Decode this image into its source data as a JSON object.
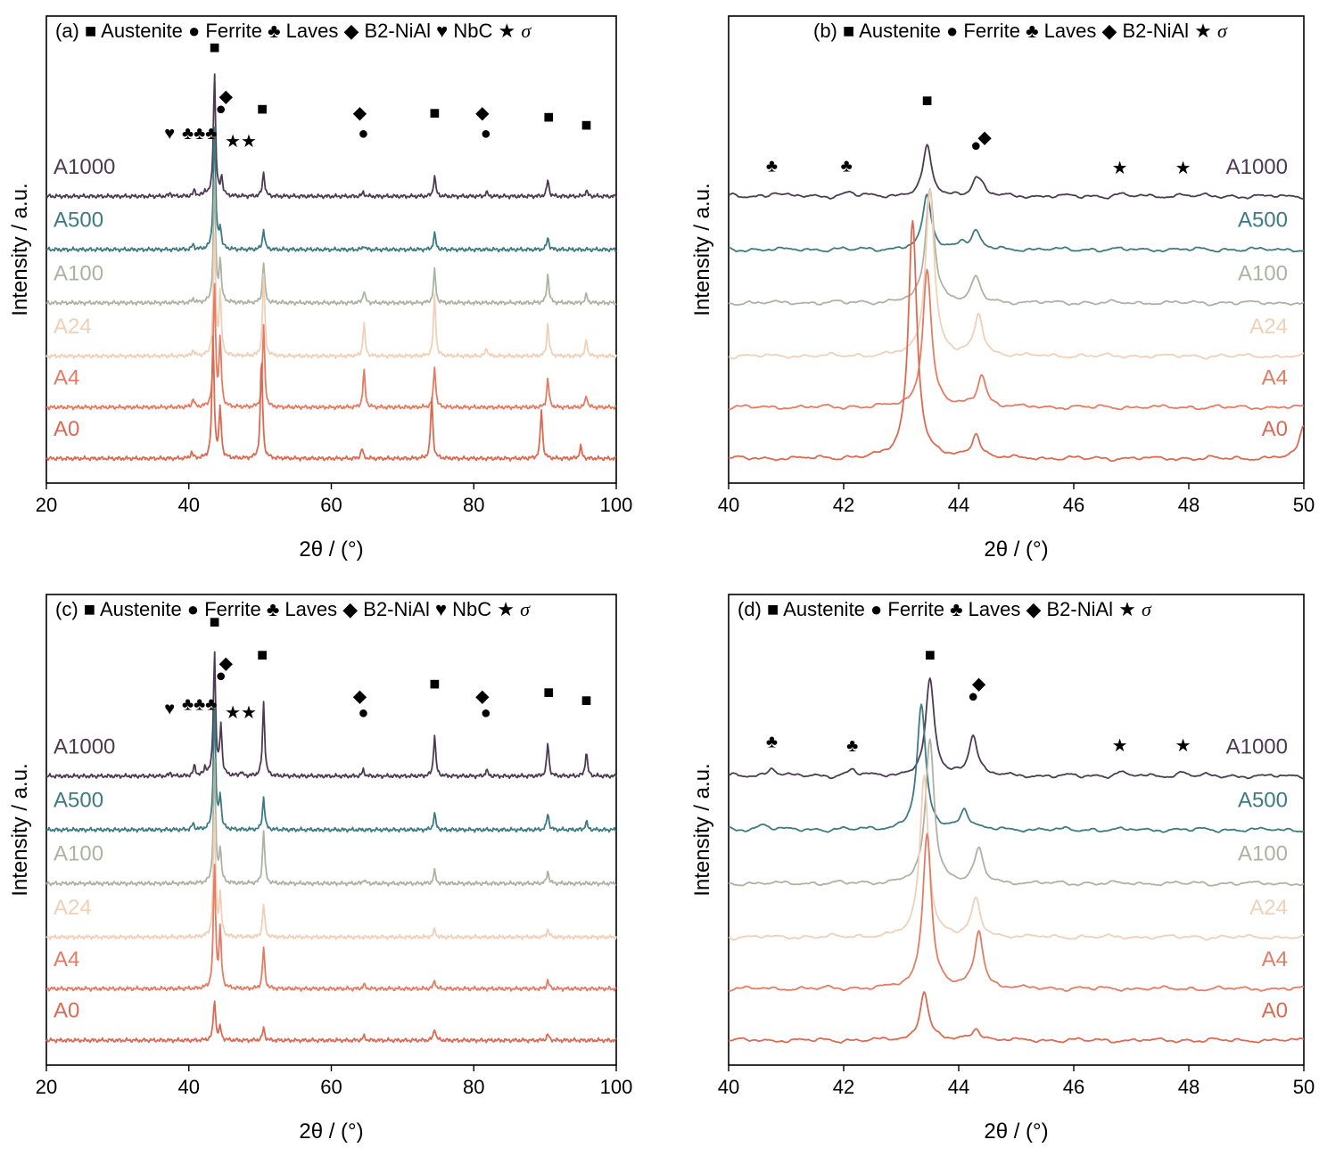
{
  "figure_title": "",
  "colors": {
    "A1000": "#4d3a52",
    "A500": "#3d7b80",
    "A100": "#adb3a2",
    "A24": "#f0d0b8",
    "A4": "#e57b63",
    "A0": "#dc6a52"
  },
  "chart_data": [
    {
      "panel": "(a)",
      "type": "line",
      "legend_text": "■ Austenite ● Ferrite ♣ Laves ◆ B2-NiAl ♥ NbC ★ σ",
      "xlabel": "2θ / (°)",
      "ylabel": "Intensity / a.u.",
      "xlim": [
        20,
        100
      ],
      "xticks": [
        "20",
        "40",
        "60",
        "80",
        "100"
      ],
      "yticks": "none",
      "series": [
        {
          "name": "A1000",
          "offset": 6.4,
          "peaks": [
            [
              43.6,
              3.0
            ],
            [
              44.6,
              0.45
            ],
            [
              40.8,
              0.15
            ],
            [
              42.3,
              0.12
            ],
            [
              50.5,
              0.6
            ],
            [
              74.5,
              0.5
            ],
            [
              90.4,
              0.4
            ],
            [
              95.8,
              0.15
            ],
            [
              64.5,
              0.1
            ],
            [
              81.8,
              0.1
            ],
            [
              37.4,
              0.08
            ]
          ]
        },
        {
          "name": "A500",
          "offset": 5.1,
          "peaks": [
            [
              43.6,
              3.0
            ],
            [
              44.4,
              0.5
            ],
            [
              50.5,
              0.5
            ],
            [
              74.5,
              0.4
            ],
            [
              90.4,
              0.3
            ],
            [
              64.6,
              0.1
            ],
            [
              40.6,
              0.12
            ]
          ]
        },
        {
          "name": "A100",
          "offset": 3.8,
          "peaks": [
            [
              43.6,
              3.0
            ],
            [
              44.4,
              1.0
            ],
            [
              50.5,
              1.0
            ],
            [
              74.5,
              0.8
            ],
            [
              90.4,
              0.7
            ],
            [
              64.6,
              0.3
            ],
            [
              95.8,
              0.2
            ],
            [
              40.6,
              0.1
            ]
          ]
        },
        {
          "name": "A24",
          "offset": 2.5,
          "peaks": [
            [
              43.6,
              3.0
            ],
            [
              44.4,
              1.5
            ],
            [
              50.5,
              2.0
            ],
            [
              74.5,
              1.5
            ],
            [
              90.4,
              0.8
            ],
            [
              64.6,
              0.8
            ],
            [
              95.8,
              0.4
            ],
            [
              40.6,
              0.15
            ],
            [
              81.8,
              0.2
            ]
          ]
        },
        {
          "name": "A4",
          "offset": 1.25,
          "peaks": [
            [
              43.6,
              3.0
            ],
            [
              44.4,
              1.6
            ],
            [
              50.5,
              2.0
            ],
            [
              74.5,
              1.0
            ],
            [
              90.4,
              0.7
            ],
            [
              64.6,
              0.9
            ],
            [
              95.8,
              0.3
            ],
            [
              40.6,
              0.2
            ]
          ]
        },
        {
          "name": "A0",
          "offset": 0.0,
          "peaks": [
            [
              43.4,
              3.0
            ],
            [
              44.4,
              1.2
            ],
            [
              50.2,
              2.5
            ],
            [
              74.1,
              1.5
            ],
            [
              89.5,
              1.2
            ],
            [
              64.3,
              0.25
            ],
            [
              95.0,
              0.3
            ],
            [
              40.4,
              0.15
            ]
          ]
        }
      ],
      "annotations": [
        {
          "symbol": "■",
          "x": 43.6,
          "y": 9.9
        },
        {
          "symbol": "◆",
          "x": 45.2,
          "y": 8.7
        },
        {
          "symbol": "●",
          "x": 44.5,
          "y": 8.4
        },
        {
          "symbol": "♥",
          "x": 37.3,
          "y": 7.8
        },
        {
          "symbol": "♣♣♣",
          "x": 41.5,
          "y": 7.8
        },
        {
          "symbol": "★★",
          "x": 47.3,
          "y": 7.6
        },
        {
          "symbol": "■",
          "x": 50.3,
          "y": 8.4
        },
        {
          "symbol": "◆",
          "x": 64.0,
          "y": 8.3
        },
        {
          "symbol": "●",
          "x": 64.5,
          "y": 7.8
        },
        {
          "symbol": "■",
          "x": 74.5,
          "y": 8.3
        },
        {
          "symbol": "◆",
          "x": 81.2,
          "y": 8.3
        },
        {
          "symbol": "●",
          "x": 81.7,
          "y": 7.8
        },
        {
          "symbol": "■",
          "x": 90.5,
          "y": 8.2
        },
        {
          "symbol": "■",
          "x": 95.8,
          "y": 8.0
        }
      ]
    },
    {
      "panel": "(b)",
      "type": "line",
      "legend_text": "■ Austenite ● Ferrite ♣ Laves ◆ B2-NiAl ★ σ",
      "xlabel": "2θ / (°)",
      "ylabel": "Intensity / a.u.",
      "xlim": [
        40,
        50
      ],
      "xticks": [
        "40",
        "42",
        "44",
        "46",
        "48",
        "50"
      ],
      "yticks": "none",
      "series": [
        {
          "name": "A1000",
          "offset": 6.4,
          "peaks": [
            [
              43.45,
              1.2
            ],
            [
              44.3,
              0.4
            ],
            [
              44.4,
              0.15
            ],
            [
              40.8,
              0.1
            ],
            [
              42.1,
              0.1
            ],
            [
              46.8,
              0.05
            ],
            [
              47.9,
              0.05
            ]
          ]
        },
        {
          "name": "A500",
          "offset": 5.1,
          "peaks": [
            [
              43.45,
              1.3
            ],
            [
              44.3,
              0.4
            ],
            [
              44.05,
              0.2
            ]
          ]
        },
        {
          "name": "A100",
          "offset": 3.8,
          "peaks": [
            [
              43.5,
              2.8
            ],
            [
              44.3,
              0.6
            ]
          ]
        },
        {
          "name": "A24",
          "offset": 2.5,
          "peaks": [
            [
              43.5,
              4.1
            ],
            [
              44.35,
              1.0
            ]
          ]
        },
        {
          "name": "A4",
          "offset": 1.25,
          "peaks": [
            [
              43.45,
              3.4
            ],
            [
              44.4,
              0.8
            ]
          ]
        },
        {
          "name": "A0",
          "offset": 0.0,
          "peaks": [
            [
              43.2,
              5.8
            ],
            [
              44.3,
              0.6
            ],
            [
              50.0,
              0.8
            ]
          ]
        }
      ],
      "annotations": [
        {
          "symbol": "■",
          "x": 43.45,
          "y": 8.6
        },
        {
          "symbol": "◆",
          "x": 44.45,
          "y": 7.7
        },
        {
          "symbol": "●",
          "x": 44.3,
          "y": 7.5
        },
        {
          "symbol": "♣",
          "x": 40.75,
          "y": 7.0
        },
        {
          "symbol": "♣",
          "x": 42.05,
          "y": 7.0
        },
        {
          "symbol": "★",
          "x": 46.8,
          "y": 6.95
        },
        {
          "symbol": "★",
          "x": 47.9,
          "y": 6.95
        }
      ]
    },
    {
      "panel": "(c)",
      "type": "line",
      "legend_text": "■ Austenite ● Ferrite ♣ Laves ◆ B2-NiAl ♥ NbC ★ σ",
      "xlabel": "2θ / (°)",
      "ylabel": "Intensity / a.u.",
      "xlim": [
        20,
        100
      ],
      "xticks": [
        "20",
        "40",
        "60",
        "80",
        "100"
      ],
      "yticks": "none",
      "series": [
        {
          "name": "A1000",
          "offset": 6.4,
          "peaks": [
            [
              43.6,
              3.0
            ],
            [
              44.5,
              1.2
            ],
            [
              50.5,
              1.8
            ],
            [
              74.5,
              1.0
            ],
            [
              90.4,
              0.8
            ],
            [
              95.8,
              0.6
            ],
            [
              40.8,
              0.25
            ],
            [
              42.3,
              0.2
            ],
            [
              64.5,
              0.15
            ],
            [
              81.8,
              0.15
            ],
            [
              37.4,
              0.08
            ],
            [
              47.3,
              0.1
            ]
          ]
        },
        {
          "name": "A500",
          "offset": 5.1,
          "peaks": [
            [
              43.6,
              3.0
            ],
            [
              44.4,
              0.8
            ],
            [
              50.5,
              0.8
            ],
            [
              74.5,
              0.4
            ],
            [
              90.4,
              0.4
            ],
            [
              95.8,
              0.2
            ],
            [
              40.6,
              0.15
            ]
          ]
        },
        {
          "name": "A100",
          "offset": 3.8,
          "peaks": [
            [
              43.6,
              3.0
            ],
            [
              44.4,
              0.8
            ],
            [
              50.5,
              1.3
            ],
            [
              74.5,
              0.3
            ],
            [
              90.4,
              0.3
            ],
            [
              64.6,
              0.1
            ]
          ]
        },
        {
          "name": "A24",
          "offset": 2.5,
          "peaks": [
            [
              43.6,
              3.0
            ],
            [
              44.4,
              1.0
            ],
            [
              50.5,
              0.8
            ],
            [
              74.5,
              0.2
            ],
            [
              90.4,
              0.2
            ]
          ]
        },
        {
          "name": "A4",
          "offset": 1.25,
          "peaks": [
            [
              43.6,
              3.0
            ],
            [
              44.4,
              1.4
            ],
            [
              50.5,
              1.0
            ],
            [
              74.5,
              0.2
            ],
            [
              90.4,
              0.2
            ],
            [
              64.6,
              0.1
            ]
          ]
        },
        {
          "name": "A0",
          "offset": 0.0,
          "peaks": [
            [
              43.6,
              1.0
            ],
            [
              44.4,
              0.3
            ],
            [
              50.5,
              0.3
            ],
            [
              74.5,
              0.3
            ],
            [
              90.4,
              0.15
            ],
            [
              64.6,
              0.1
            ]
          ]
        }
      ],
      "annotations": [
        {
          "symbol": "■",
          "x": 43.6,
          "y": 10.0
        },
        {
          "symbol": "◆",
          "x": 45.2,
          "y": 9.0
        },
        {
          "symbol": "●",
          "x": 44.5,
          "y": 8.7
        },
        {
          "symbol": "♥",
          "x": 37.3,
          "y": 7.9
        },
        {
          "symbol": "♣♣♣",
          "x": 41.5,
          "y": 8.0
        },
        {
          "symbol": "★★",
          "x": 47.3,
          "y": 7.8
        },
        {
          "symbol": "■",
          "x": 50.3,
          "y": 9.2
        },
        {
          "symbol": "◆",
          "x": 64.0,
          "y": 8.2
        },
        {
          "symbol": "●",
          "x": 64.5,
          "y": 7.8
        },
        {
          "symbol": "■",
          "x": 74.5,
          "y": 8.5
        },
        {
          "symbol": "◆",
          "x": 81.2,
          "y": 8.2
        },
        {
          "symbol": "●",
          "x": 81.7,
          "y": 7.8
        },
        {
          "symbol": "■",
          "x": 90.5,
          "y": 8.3
        },
        {
          "symbol": "■",
          "x": 95.8,
          "y": 8.1
        }
      ]
    },
    {
      "panel": "(d)",
      "type": "line",
      "legend_text": "■ Austenite ● Ferrite ♣ Laves ◆ B2-NiAl ★ σ",
      "xlabel": "2θ / (°)",
      "ylabel": "Intensity / a.u.",
      "xlim": [
        40,
        50
      ],
      "xticks": [
        "40",
        "42",
        "44",
        "46",
        "48",
        "50"
      ],
      "yticks": "none",
      "series": [
        {
          "name": "A1000",
          "offset": 6.4,
          "peaks": [
            [
              43.5,
              2.3
            ],
            [
              44.25,
              1.0
            ],
            [
              40.75,
              0.2
            ],
            [
              42.15,
              0.15
            ],
            [
              46.8,
              0.1
            ],
            [
              47.9,
              0.1
            ]
          ]
        },
        {
          "name": "A500",
          "offset": 5.1,
          "peaks": [
            [
              43.35,
              3.0
            ],
            [
              44.1,
              0.5
            ],
            [
              40.6,
              0.15
            ]
          ]
        },
        {
          "name": "A100",
          "offset": 3.8,
          "peaks": [
            [
              43.5,
              3.5
            ],
            [
              44.35,
              0.8
            ]
          ]
        },
        {
          "name": "A24",
          "offset": 2.5,
          "peaks": [
            [
              43.4,
              3.9
            ],
            [
              44.3,
              0.9
            ]
          ]
        },
        {
          "name": "A4",
          "offset": 1.25,
          "peaks": [
            [
              43.45,
              3.8
            ],
            [
              44.35,
              1.4
            ]
          ]
        },
        {
          "name": "A0",
          "offset": 0.0,
          "peaks": [
            [
              43.4,
              1.2
            ],
            [
              44.3,
              0.3
            ]
          ]
        }
      ],
      "annotations": [
        {
          "symbol": "■",
          "x": 43.5,
          "y": 9.2
        },
        {
          "symbol": "◆",
          "x": 44.35,
          "y": 8.5
        },
        {
          "symbol": "●",
          "x": 44.25,
          "y": 8.2
        },
        {
          "symbol": "♣",
          "x": 40.75,
          "y": 7.1
        },
        {
          "symbol": "♣",
          "x": 42.15,
          "y": 7.0
        },
        {
          "symbol": "★",
          "x": 46.8,
          "y": 7.0
        },
        {
          "symbol": "★",
          "x": 47.9,
          "y": 7.0
        }
      ]
    }
  ]
}
